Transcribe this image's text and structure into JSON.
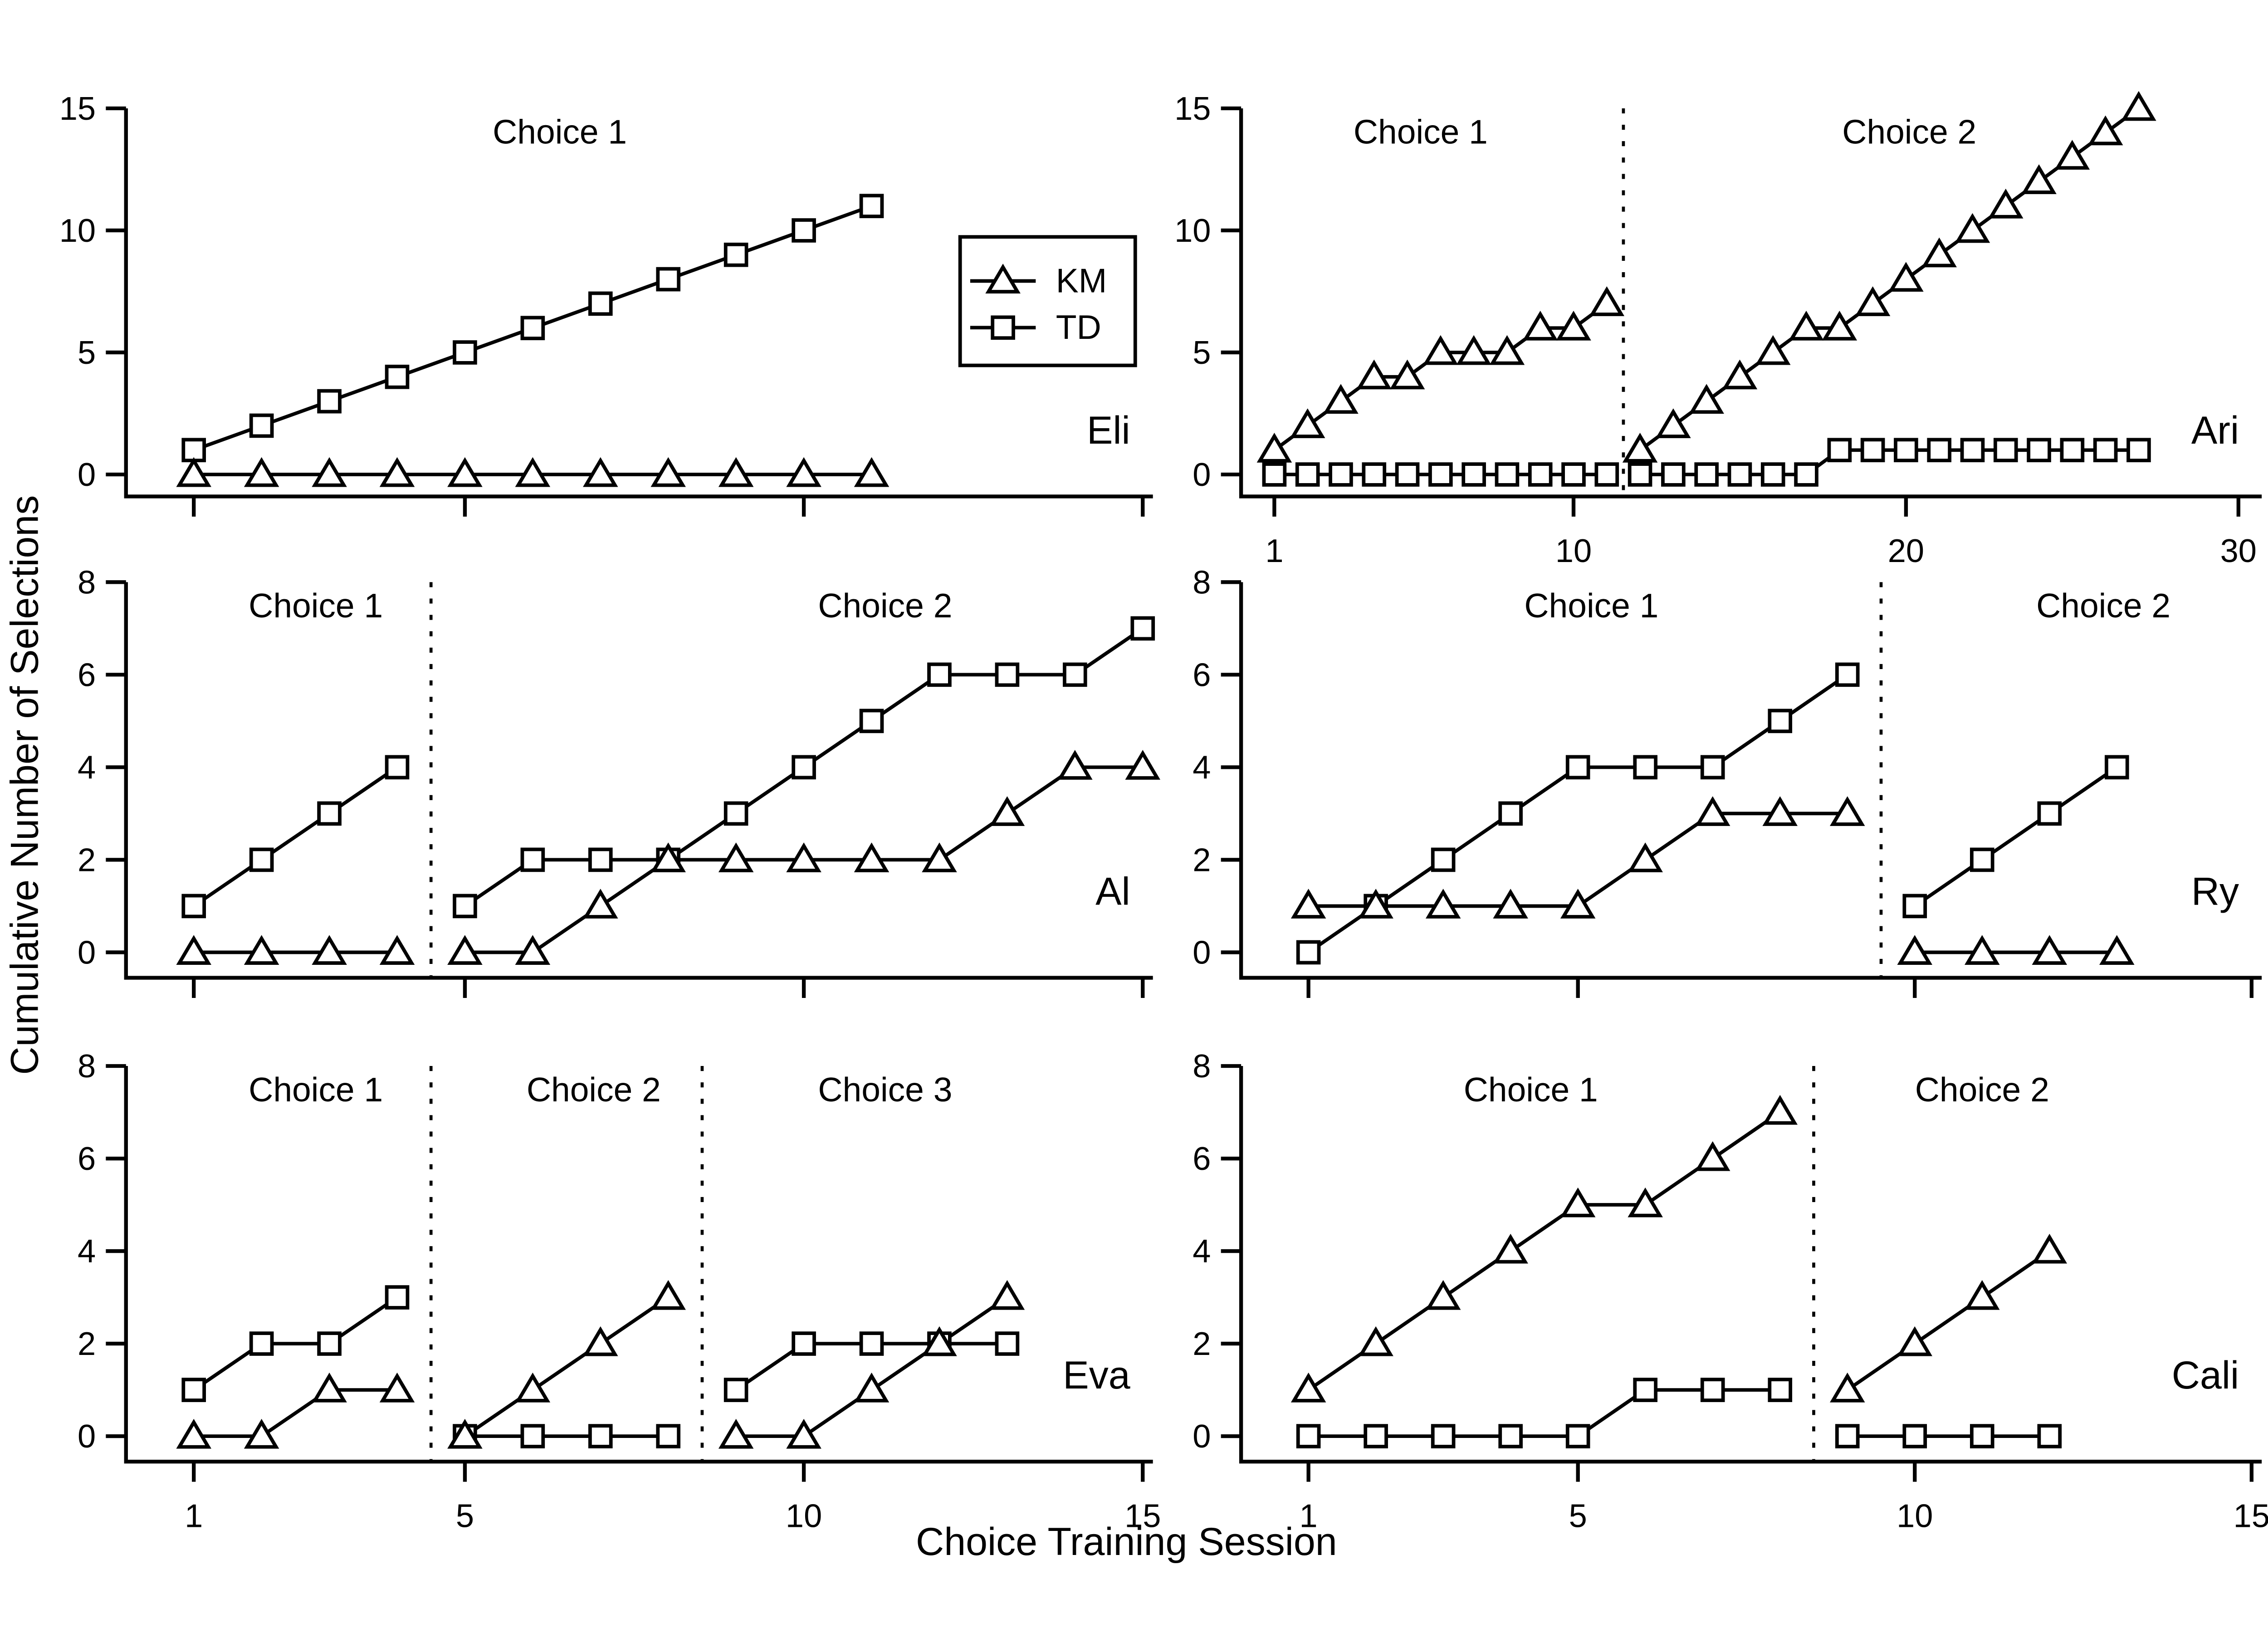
{
  "figure": {
    "ylabel": "Cumulative Number of Selections",
    "xlabel": "Choice Training Session",
    "foreground": "#000000",
    "background": "#ffffff",
    "legend": {
      "items": [
        {
          "label": "KM",
          "marker": "triangle"
        },
        {
          "label": "TD",
          "marker": "square"
        }
      ]
    }
  },
  "chart_data": [
    {
      "type": "line",
      "subject": "Eli",
      "row": 0,
      "col": 0,
      "ylim": [
        -0.9,
        15
      ],
      "yticks": [
        0,
        5,
        10,
        15
      ],
      "xlim": [
        0,
        15.15
      ],
      "xticks": [
        1,
        5,
        10,
        15
      ],
      "show_xtick_labels": false,
      "legend": true,
      "dividers": [],
      "phases": [
        {
          "label": "Choice 1",
          "label_x": 6.4,
          "x_start": 1,
          "KM": [
            0,
            0,
            0,
            0,
            0,
            0,
            0,
            0,
            0,
            0,
            0
          ],
          "TD": [
            1,
            2,
            3,
            4,
            5,
            6,
            7,
            8,
            9,
            10,
            11
          ]
        }
      ]
    },
    {
      "type": "line",
      "subject": "Ari",
      "row": 0,
      "col": 1,
      "ylim": [
        -0.9,
        15
      ],
      "yticks": [
        0,
        5,
        10,
        15
      ],
      "xlim": [
        0,
        30.7
      ],
      "xticks": [
        1,
        10,
        20,
        30
      ],
      "show_xtick_labels": true,
      "legend": false,
      "dividers": [
        11.5
      ],
      "phases": [
        {
          "label": "Choice 1",
          "label_x": 5.4,
          "x_start": 1,
          "KM": [
            1,
            2,
            3,
            4,
            4,
            5,
            5,
            5,
            6,
            6,
            7
          ],
          "TD": [
            0,
            0,
            0,
            0,
            0,
            0,
            0,
            0,
            0,
            0,
            0
          ]
        },
        {
          "label": "Choice 2",
          "label_x": 20.1,
          "x_start": 12,
          "KM": [
            1,
            2,
            3,
            4,
            5,
            6,
            6,
            7,
            8,
            9,
            10,
            11,
            12,
            13,
            14,
            15
          ],
          "TD": [
            0,
            0,
            0,
            0,
            0,
            0,
            1,
            1,
            1,
            1,
            1,
            1,
            1,
            1,
            1,
            1
          ]
        }
      ]
    },
    {
      "type": "line",
      "subject": "Al",
      "row": 1,
      "col": 0,
      "ylim": [
        -0.55,
        8
      ],
      "yticks": [
        0,
        2,
        4,
        6,
        8
      ],
      "xlim": [
        0,
        15.15
      ],
      "xticks": [
        1,
        5,
        10,
        15
      ],
      "show_xtick_labels": false,
      "legend": false,
      "dividers": [
        4.5
      ],
      "phases": [
        {
          "label": "Choice 1",
          "label_x": 2.8,
          "x_start": 1,
          "KM": [
            0,
            0,
            0,
            0
          ],
          "TD": [
            1,
            2,
            3,
            4
          ]
        },
        {
          "label": "Choice 2",
          "label_x": 11.2,
          "x_start": 5,
          "KM": [
            0,
            0,
            1,
            2,
            2,
            2,
            2,
            2,
            3,
            4,
            4
          ],
          "TD": [
            1,
            2,
            2,
            2,
            3,
            4,
            5,
            6,
            6,
            6,
            7
          ]
        }
      ]
    },
    {
      "type": "line",
      "subject": "Ry",
      "row": 1,
      "col": 1,
      "ylim": [
        -0.55,
        8
      ],
      "yticks": [
        0,
        2,
        4,
        6,
        8
      ],
      "xlim": [
        0,
        15.15
      ],
      "xticks": [
        1,
        5,
        10,
        15
      ],
      "show_xtick_labels": false,
      "legend": false,
      "dividers": [
        9.5
      ],
      "phases": [
        {
          "label": "Choice 1",
          "label_x": 5.2,
          "x_start": 1,
          "KM": [
            1,
            1,
            1,
            1,
            1,
            2,
            3,
            3,
            3
          ],
          "TD": [
            0,
            1,
            2,
            3,
            4,
            4,
            4,
            5,
            6
          ]
        },
        {
          "label": "Choice 2",
          "label_x": 12.8,
          "x_start": 10,
          "KM": [
            0,
            0,
            0,
            0
          ],
          "TD": [
            1,
            2,
            3,
            4
          ]
        }
      ]
    },
    {
      "type": "line",
      "subject": "Eva",
      "row": 2,
      "col": 0,
      "ylim": [
        -0.55,
        8
      ],
      "yticks": [
        0,
        2,
        4,
        6,
        8
      ],
      "xlim": [
        0,
        15.15
      ],
      "xticks": [
        1,
        5,
        10,
        15
      ],
      "show_xtick_labels": true,
      "legend": false,
      "dividers": [
        4.5,
        8.5
      ],
      "phases": [
        {
          "label": "Choice 1",
          "label_x": 2.8,
          "x_start": 1,
          "KM": [
            0,
            0,
            1,
            1
          ],
          "TD": [
            1,
            2,
            2,
            3
          ]
        },
        {
          "label": "Choice 2",
          "label_x": 6.9,
          "x_start": 5,
          "KM": [
            0,
            1,
            2,
            3
          ],
          "TD": [
            0,
            0,
            0,
            0
          ]
        },
        {
          "label": "Choice 3",
          "label_x": 11.2,
          "x_start": 9,
          "KM": [
            0,
            0,
            1,
            2,
            3
          ],
          "TD": [
            1,
            2,
            2,
            2,
            2
          ]
        }
      ]
    },
    {
      "type": "line",
      "subject": "Cali",
      "row": 2,
      "col": 1,
      "ylim": [
        -0.55,
        8
      ],
      "yticks": [
        0,
        2,
        4,
        6,
        8
      ],
      "xlim": [
        0,
        15.15
      ],
      "xticks": [
        1,
        5,
        10,
        15
      ],
      "show_xtick_labels": true,
      "legend": false,
      "dividers": [
        8.5
      ],
      "phases": [
        {
          "label": "Choice 1",
          "label_x": 4.3,
          "x_start": 1,
          "KM": [
            1,
            2,
            3,
            4,
            5,
            5,
            6,
            7
          ],
          "TD": [
            0,
            0,
            0,
            0,
            0,
            1,
            1,
            1
          ]
        },
        {
          "label": "Choice 2",
          "label_x": 11.0,
          "x_start": 9,
          "KM": [
            1,
            2,
            3,
            4
          ],
          "TD": [
            0,
            0,
            0,
            0
          ]
        }
      ]
    }
  ]
}
